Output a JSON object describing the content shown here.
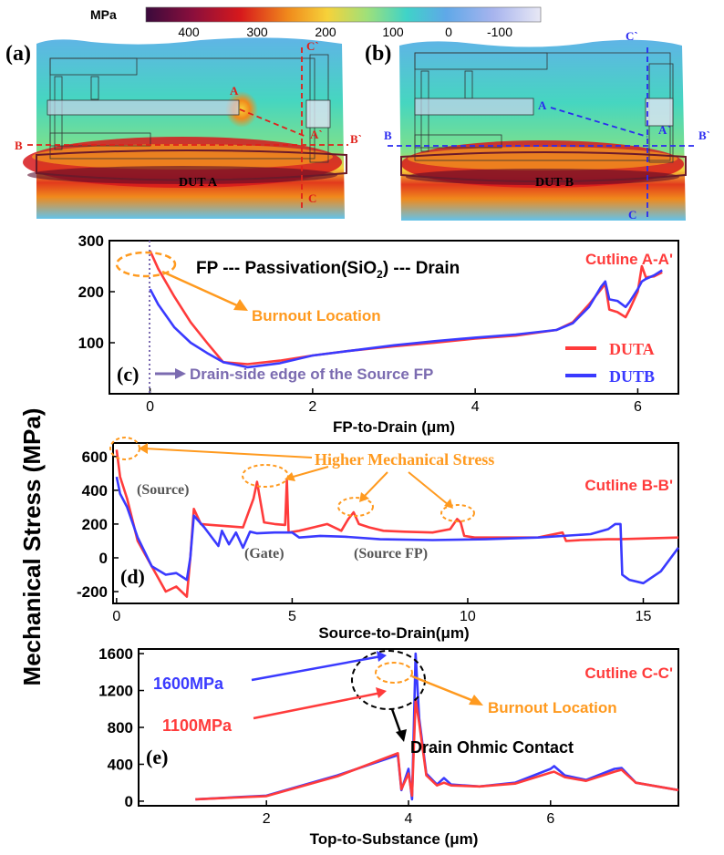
{
  "colorbar": {
    "unit": "MPa",
    "ticks": [
      "400",
      "300",
      "200",
      "100",
      "0",
      "-100"
    ],
    "colors": [
      "#3a0a3c",
      "#8b0f3c",
      "#d7191c",
      "#f08a1c",
      "#f6d23a",
      "#9fe07a",
      "#3fd3c8",
      "#5fa8e8",
      "#a7b4ee",
      "#e8e8f5"
    ]
  },
  "panels": {
    "a": {
      "label": "(a)",
      "dut": "DUT A",
      "A": "A",
      "A2": "A`",
      "B": "B",
      "B2": "B`",
      "C": "C",
      "C2": "C`"
    },
    "b": {
      "label": "(b)",
      "dut": "DUT B",
      "A": "A",
      "A2": "A`",
      "B": "B",
      "B2": "B`",
      "C": "C",
      "C2": "C`"
    }
  },
  "shared_ylabel": "Mechanical Stress (MPa)",
  "colors": {
    "red": "#ff3b3b",
    "blue": "#3a3aff",
    "orange": "#ff9a1f",
    "purple": "#7b6bb0",
    "black": "#000000"
  },
  "chart_data": [
    {
      "id": "c",
      "type": "line",
      "panel_label": "(c)",
      "title_text": "FP --- Passivation(SiO",
      "title_sub": "2",
      "title_tail": ") --- Drain",
      "cutline": "Cutline A-A'",
      "xlabel": "FP-to-Drain (μm)",
      "xlim": [
        -0.5,
        6.5
      ],
      "ylim": [
        0,
        300
      ],
      "xticks": [
        0,
        2,
        4,
        6
      ],
      "xtick_labels": [
        "0",
        "2",
        "4",
        "6"
      ],
      "yticks": [
        100,
        200,
        300
      ],
      "ytick_labels": [
        "100",
        "200",
        "300"
      ],
      "legend": [
        "DUTA",
        "DUTB"
      ],
      "annotations": [
        "Burnout Location",
        "Drain-side edge of the Source FP"
      ],
      "series": [
        {
          "name": "DUTA",
          "color": "#ff3b3b",
          "x": [
            0,
            0.1,
            0.3,
            0.5,
            0.7,
            0.9,
            1.2,
            1.6,
            2.0,
            2.5,
            3.0,
            3.5,
            4.0,
            4.5,
            5.0,
            5.2,
            5.4,
            5.55,
            5.6,
            5.65,
            5.75,
            5.85,
            5.9,
            6.0,
            6.05,
            6.1,
            6.2,
            6.3
          ],
          "y": [
            280,
            245,
            190,
            140,
            100,
            62,
            58,
            65,
            75,
            85,
            93,
            100,
            108,
            114,
            125,
            140,
            175,
            205,
            215,
            165,
            160,
            150,
            165,
            200,
            250,
            228,
            230,
            238
          ]
        },
        {
          "name": "DUTB",
          "color": "#3a3aff",
          "x": [
            0,
            0.1,
            0.3,
            0.5,
            0.7,
            0.9,
            1.2,
            1.6,
            2.0,
            2.5,
            3.0,
            3.5,
            4.0,
            4.5,
            5.0,
            5.2,
            5.4,
            5.55,
            5.6,
            5.65,
            5.75,
            5.85,
            5.9,
            6.0,
            6.05,
            6.1,
            6.2,
            6.3
          ],
          "y": [
            205,
            175,
            130,
            100,
            80,
            62,
            52,
            60,
            75,
            85,
            95,
            103,
            110,
            116,
            125,
            138,
            170,
            210,
            220,
            185,
            182,
            170,
            180,
            205,
            220,
            225,
            232,
            242
          ]
        }
      ]
    },
    {
      "id": "d",
      "type": "line",
      "panel_label": "(d)",
      "cutline": "Cutline B-B'",
      "xlabel": "Source-to-Drain(μm)",
      "xlim": [
        -0.1,
        16
      ],
      "ylim": [
        -270,
        680
      ],
      "xticks": [
        0,
        5,
        10,
        15
      ],
      "xtick_labels": [
        "0",
        "5",
        "10",
        "15"
      ],
      "yticks": [
        -200,
        0,
        200,
        400,
        600
      ],
      "ytick_labels": [
        "-200",
        "0",
        "200",
        "400",
        "600"
      ],
      "annotations": [
        "Higher Mechanical Stress",
        "(Source)",
        "(Gate)",
        "(Source FP)"
      ],
      "series": [
        {
          "name": "DUTA",
          "color": "#ff3b3b",
          "x": [
            0,
            0.1,
            0.3,
            0.6,
            1.0,
            1.4,
            1.7,
            2.0,
            2.1,
            2.2,
            2.4,
            2.7,
            3.0,
            3.3,
            3.6,
            3.9,
            4.0,
            4.2,
            4.5,
            4.8,
            4.85,
            4.9,
            5.2,
            5.6,
            6.0,
            6.4,
            6.6,
            6.75,
            6.9,
            7.2,
            7.6,
            8.2,
            9.0,
            9.5,
            9.7,
            9.8,
            9.9,
            10.2,
            11.0,
            12.0,
            12.7,
            12.8,
            13.2,
            14.0,
            14.3,
            16.0
          ],
          "y": [
            640,
            480,
            350,
            100,
            -50,
            -200,
            -170,
            -230,
            0,
            290,
            200,
            195,
            190,
            185,
            180,
            350,
            450,
            210,
            200,
            195,
            460,
            150,
            160,
            180,
            200,
            160,
            230,
            270,
            200,
            180,
            160,
            155,
            150,
            170,
            230,
            210,
            130,
            120,
            120,
            120,
            150,
            100,
            105,
            110,
            110,
            120
          ]
        },
        {
          "name": "DUTB",
          "color": "#3a3aff",
          "x": [
            0,
            0.1,
            0.3,
            0.6,
            1.0,
            1.4,
            1.7,
            2.0,
            2.1,
            2.2,
            2.5,
            2.9,
            3.0,
            3.2,
            3.4,
            3.6,
            3.8,
            4.0,
            4.5,
            5.0,
            5.2,
            5.8,
            6.5,
            7.5,
            9.0,
            10.5,
            12.0,
            13.5,
            14.0,
            14.2,
            14.35,
            14.4,
            14.6,
            15.0,
            15.5,
            16.0
          ],
          "y": [
            480,
            380,
            300,
            120,
            -50,
            -100,
            -90,
            -130,
            0,
            250,
            180,
            70,
            160,
            80,
            150,
            60,
            155,
            145,
            150,
            150,
            120,
            130,
            125,
            110,
            105,
            110,
            120,
            140,
            170,
            200,
            200,
            -100,
            -130,
            -150,
            -80,
            60
          ]
        }
      ]
    },
    {
      "id": "e",
      "type": "line",
      "panel_label": "(e)",
      "cutline": "Cutline C-C'",
      "xlabel": "Top-to-Substance (μm)",
      "xlim": [
        0.2,
        7.8
      ],
      "ylim": [
        -50,
        1650
      ],
      "xticks": [
        2,
        4,
        6
      ],
      "xtick_labels": [
        "2",
        "4",
        "6"
      ],
      "yticks": [
        0,
        400,
        800,
        1200,
        1600
      ],
      "ytick_labels": [
        "0",
        "400",
        "800",
        "1200",
        "1600"
      ],
      "annotations": [
        "1600MPa",
        "1100MPa",
        "Burnout Location",
        "Drain Ohmic Contact"
      ],
      "series": [
        {
          "name": "DUTB",
          "color": "#3a3aff",
          "x": [
            1.0,
            2.0,
            3.0,
            3.85,
            3.9,
            4.0,
            4.05,
            4.1,
            4.15,
            4.25,
            4.4,
            4.5,
            4.6,
            5.0,
            5.5,
            6.0,
            6.05,
            6.2,
            6.5,
            6.9,
            7.0,
            7.2,
            7.8
          ],
          "y": [
            20,
            60,
            280,
            500,
            120,
            350,
            20,
            1600,
            900,
            300,
            180,
            250,
            180,
            160,
            200,
            350,
            380,
            280,
            230,
            350,
            360,
            200,
            120
          ]
        },
        {
          "name": "DUTA",
          "color": "#ff3b3b",
          "x": [
            1.0,
            2.0,
            3.0,
            3.85,
            3.9,
            4.0,
            4.05,
            4.1,
            4.15,
            4.25,
            4.4,
            4.5,
            4.6,
            5.0,
            5.5,
            6.0,
            6.05,
            6.2,
            6.5,
            6.9,
            7.0,
            7.2,
            7.8
          ],
          "y": [
            20,
            55,
            270,
            520,
            130,
            300,
            60,
            1100,
            850,
            280,
            170,
            200,
            170,
            160,
            190,
            310,
            320,
            260,
            220,
            320,
            340,
            200,
            120
          ]
        }
      ]
    }
  ]
}
